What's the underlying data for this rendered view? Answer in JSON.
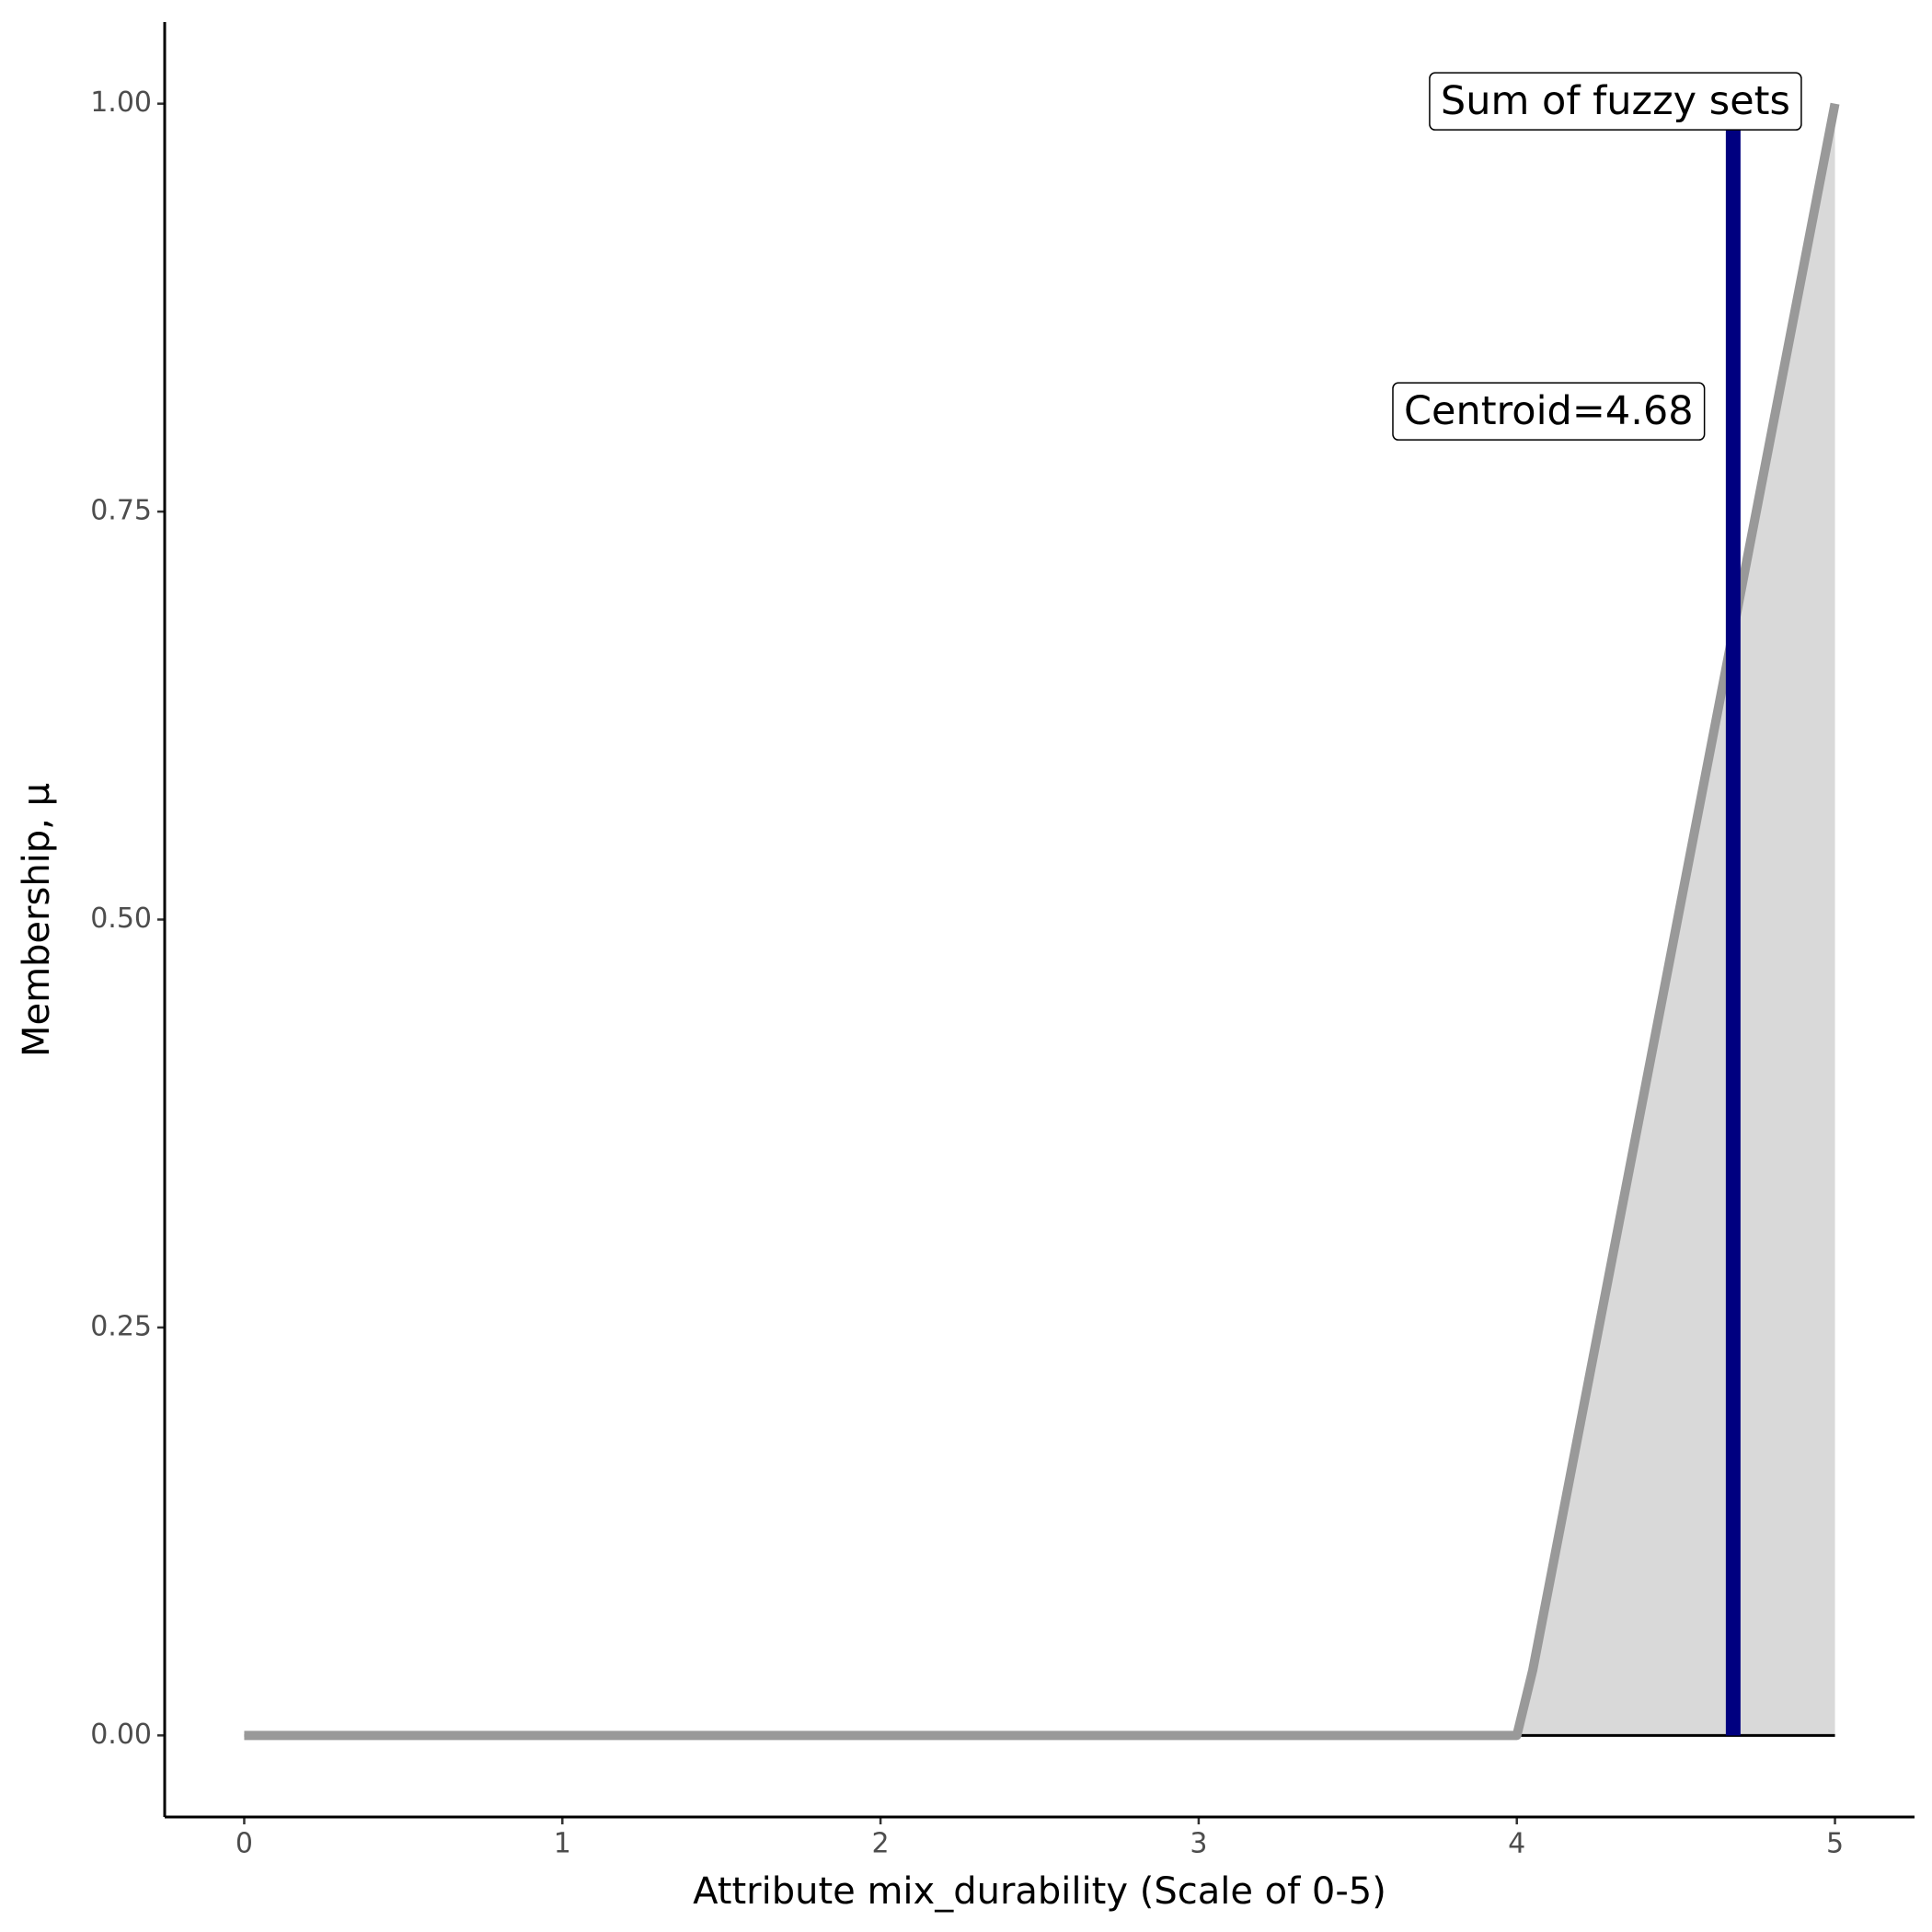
{
  "chart_data": {
    "type": "area",
    "x_label": "Attribute mix_durability (Scale of 0-5)",
    "y_label": "Membership, μ",
    "x": [
      0,
      4,
      4.05,
      5
    ],
    "values": [
      0,
      0,
      0.04,
      1
    ],
    "color": "#999999",
    "fill": "#d9d9d9",
    "xlim": [
      -0.25,
      5.25
    ],
    "ylim": [
      -0.05,
      1.05
    ],
    "xticks": [
      0,
      1,
      2,
      3,
      4,
      5
    ],
    "yticks": [
      {
        "value": 0,
        "label": "0.00"
      },
      {
        "value": 0.25,
        "label": "0.25"
      },
      {
        "value": 0.5,
        "label": "0.50"
      },
      {
        "value": 0.75,
        "label": "0.75"
      },
      {
        "value": 1,
        "label": "1.00"
      }
    ],
    "centroid": {
      "x": 4.68,
      "y": [
        0,
        1
      ],
      "color": "#000080"
    },
    "annotations": [
      {
        "text": "Sum of fuzzy sets",
        "x": 4.31,
        "y": 1.0
      },
      {
        "text": "Centroid=4.68",
        "x": 4.1,
        "y": 0.81
      }
    ]
  }
}
